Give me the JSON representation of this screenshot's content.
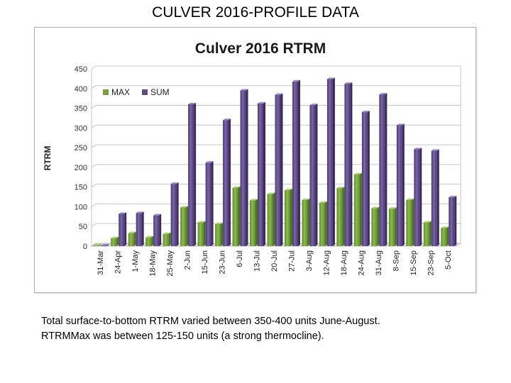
{
  "slide": {
    "title": "CULVER 2016-PROFILE DATA",
    "caption_lines": [
      "Total surface-to-bottom RTRM varied between 350-400 units June-August.",
      "RTRMMax was between 125-150 units (a strong thermocline)."
    ]
  },
  "chart_data": {
    "type": "bar",
    "title": "Culver 2016 RTRM",
    "xlabel": "",
    "ylabel": "RTRM",
    "ylim": [
      0,
      450
    ],
    "yticks": [
      0,
      50,
      100,
      150,
      200,
      250,
      300,
      350,
      400,
      450
    ],
    "grid": true,
    "legend_position": "top-left",
    "categories": [
      "31-Mar",
      "24-Apr",
      "1-May",
      "18-May",
      "25-May",
      "2-Jun",
      "15-Jun",
      "23-Jun",
      "6-Jul",
      "13-Jul",
      "20-Jul",
      "27-Jul",
      "3-Aug",
      "12-Aug",
      "18-Aug",
      "24-Aug",
      "31-Aug",
      "8-Sep",
      "15-Sep",
      "23-Sep",
      "5-Oct"
    ],
    "series": [
      {
        "name": "MAX",
        "color": "#77A33A",
        "values": [
          2,
          20,
          33,
          22,
          31,
          98,
          60,
          56,
          148,
          116,
          132,
          142,
          117,
          110,
          147,
          182,
          96,
          95,
          117,
          60,
          46
        ]
      },
      {
        "name": "SUM",
        "color": "#5F4B8B",
        "values": [
          2,
          82,
          84,
          78,
          158,
          360,
          212,
          320,
          395,
          362,
          384,
          418,
          358,
          424,
          412,
          340,
          385,
          307,
          246,
          242,
          124
        ]
      }
    ]
  }
}
